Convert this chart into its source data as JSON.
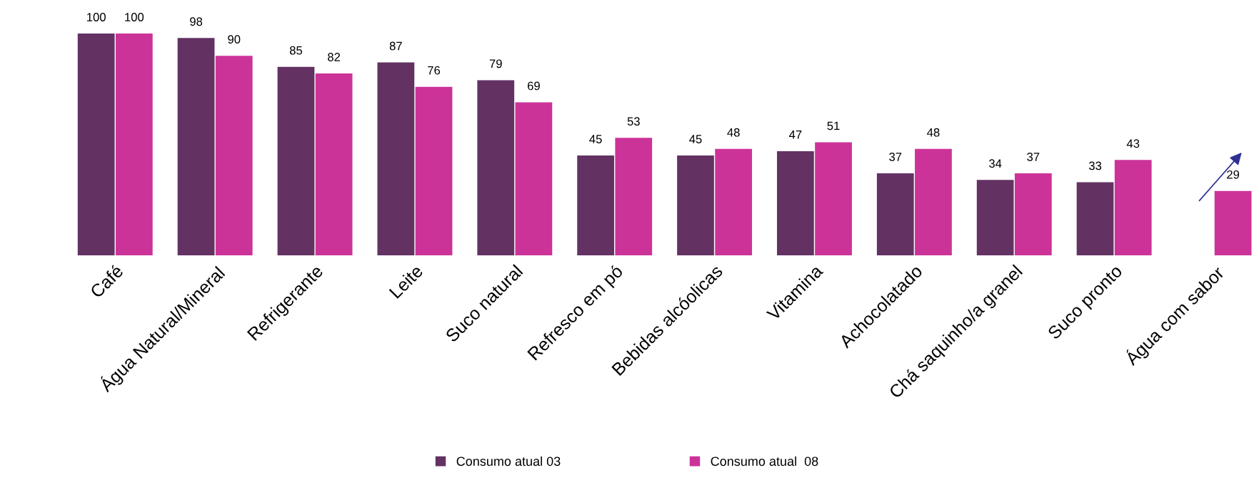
{
  "chart_data": {
    "type": "bar",
    "categories": [
      "Café",
      "Água Natural/Mineral",
      "Refrigerante",
      "Leite",
      "Suco natural",
      "Refresco em pó",
      "Bebidas alcóolicas",
      "Vitamina",
      "Achocolatado",
      "Chá saquinho/a granel",
      "Suco pronto",
      "Água com sabor"
    ],
    "series": [
      {
        "name": "Consumo atual 03",
        "color": "#633263",
        "values": [
          100,
          98,
          85,
          87,
          79,
          45,
          45,
          47,
          37,
          34,
          33,
          null
        ]
      },
      {
        "name": "Consumo atual  08",
        "color": "#cc3399",
        "values": [
          100,
          90,
          82,
          76,
          69,
          53,
          48,
          51,
          48,
          37,
          43,
          29
        ]
      }
    ],
    "data_labels": true,
    "legend": "bottom",
    "grid": false
  }
}
